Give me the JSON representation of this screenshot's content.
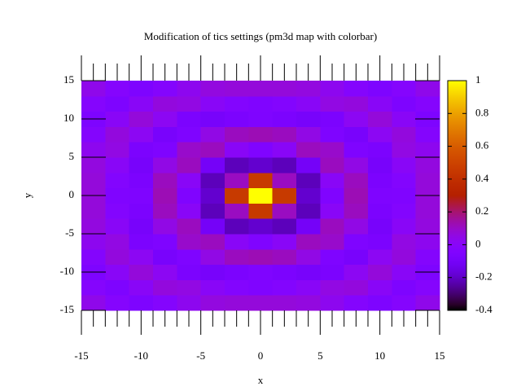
{
  "chart_data": {
    "type": "heatmap",
    "title": "Modification of tics settings (pm3d map with colorbar)",
    "xlabel": "x",
    "ylabel": "y",
    "x": [
      -14,
      -12,
      -10,
      -8,
      -6,
      -4,
      -2,
      0,
      2,
      4,
      6,
      8,
      10,
      12,
      14
    ],
    "y": [
      -14,
      -12,
      -10,
      -8,
      -6,
      -4,
      -2,
      0,
      2,
      4,
      6,
      8,
      10,
      12,
      14
    ],
    "values": [
      [
        0.041,
        -0.022,
        -0.058,
        -0.025,
        0.03,
        0.063,
        0.071,
        0.071,
        0.071,
        0.063,
        0.03,
        -0.025,
        -0.058,
        -0.022,
        0.041
      ],
      [
        -0.022,
        -0.056,
        0.006,
        0.067,
        0.056,
        0.007,
        -0.032,
        -0.045,
        -0.032,
        0.007,
        0.056,
        0.067,
        0.006,
        -0.056,
        -0.022
      ],
      [
        -0.058,
        0.006,
        0.071,
        0.019,
        -0.067,
        -0.091,
        -0.069,
        -0.054,
        -0.069,
        -0.091,
        -0.067,
        0.019,
        0.071,
        0.006,
        -0.058
      ],
      [
        -0.025,
        0.067,
        0.019,
        -0.084,
        -0.054,
        0.052,
        0.112,
        0.124,
        0.112,
        0.052,
        -0.054,
        -0.084,
        0.019,
        0.067,
        -0.025
      ],
      [
        0.03,
        0.056,
        -0.067,
        -0.054,
        0.095,
        0.111,
        0.007,
        -0.047,
        0.007,
        0.111,
        0.095,
        -0.054,
        -0.067,
        0.056,
        0.03
      ],
      [
        0.063,
        0.007,
        -0.091,
        0.052,
        0.111,
        -0.104,
        -0.217,
        -0.189,
        -0.217,
        -0.104,
        0.111,
        0.052,
        -0.091,
        0.007,
        0.063
      ],
      [
        0.071,
        -0.032,
        -0.069,
        0.112,
        0.007,
        -0.217,
        0.109,
        0.455,
        0.109,
        -0.217,
        0.007,
        0.112,
        -0.069,
        -0.032,
        0.071
      ],
      [
        0.071,
        -0.045,
        -0.054,
        0.124,
        -0.047,
        -0.189,
        0.455,
        1,
        0.455,
        -0.189,
        -0.047,
        0.124,
        -0.054,
        -0.045,
        0.071
      ],
      [
        0.071,
        -0.032,
        -0.069,
        0.112,
        0.007,
        -0.217,
        0.109,
        0.455,
        0.109,
        -0.217,
        0.007,
        0.112,
        -0.069,
        -0.032,
        0.071
      ],
      [
        0.063,
        0.007,
        -0.091,
        0.052,
        0.111,
        -0.104,
        -0.217,
        -0.189,
        -0.217,
        -0.104,
        0.111,
        0.052,
        -0.091,
        0.007,
        0.063
      ],
      [
        0.03,
        0.056,
        -0.067,
        -0.054,
        0.095,
        0.111,
        0.007,
        -0.047,
        0.007,
        0.111,
        0.095,
        -0.054,
        -0.067,
        0.056,
        0.03
      ],
      [
        -0.025,
        0.067,
        0.019,
        -0.084,
        -0.054,
        0.052,
        0.112,
        0.124,
        0.112,
        0.052,
        -0.054,
        -0.084,
        0.019,
        0.067,
        -0.025
      ],
      [
        -0.058,
        0.006,
        0.071,
        0.019,
        -0.067,
        -0.091,
        -0.069,
        -0.054,
        -0.069,
        -0.091,
        -0.067,
        0.019,
        0.071,
        0.006,
        -0.058
      ],
      [
        -0.022,
        -0.056,
        0.006,
        0.067,
        0.056,
        0.007,
        -0.032,
        -0.045,
        -0.032,
        0.007,
        0.056,
        0.067,
        0.006,
        -0.056,
        -0.022
      ],
      [
        0.041,
        -0.022,
        -0.058,
        -0.025,
        0.03,
        0.063,
        0.071,
        0.071,
        0.071,
        0.063,
        0.03,
        -0.025,
        -0.058,
        -0.022,
        0.041
      ]
    ],
    "xlim": [
      -15,
      15
    ],
    "ylim": [
      -15,
      15
    ],
    "xticks": [
      -15,
      -10,
      -5,
      0,
      5,
      10,
      15
    ],
    "yticks": [
      -15,
      -10,
      -5,
      0,
      5,
      10,
      15
    ],
    "xminor_ticks": 5,
    "xtick_color": "#ff0000",
    "cblim": [
      -0.4,
      1
    ],
    "cbticks": [
      -0.4,
      -0.2,
      0,
      0.2,
      0.4,
      0.6,
      0.8,
      1
    ]
  }
}
